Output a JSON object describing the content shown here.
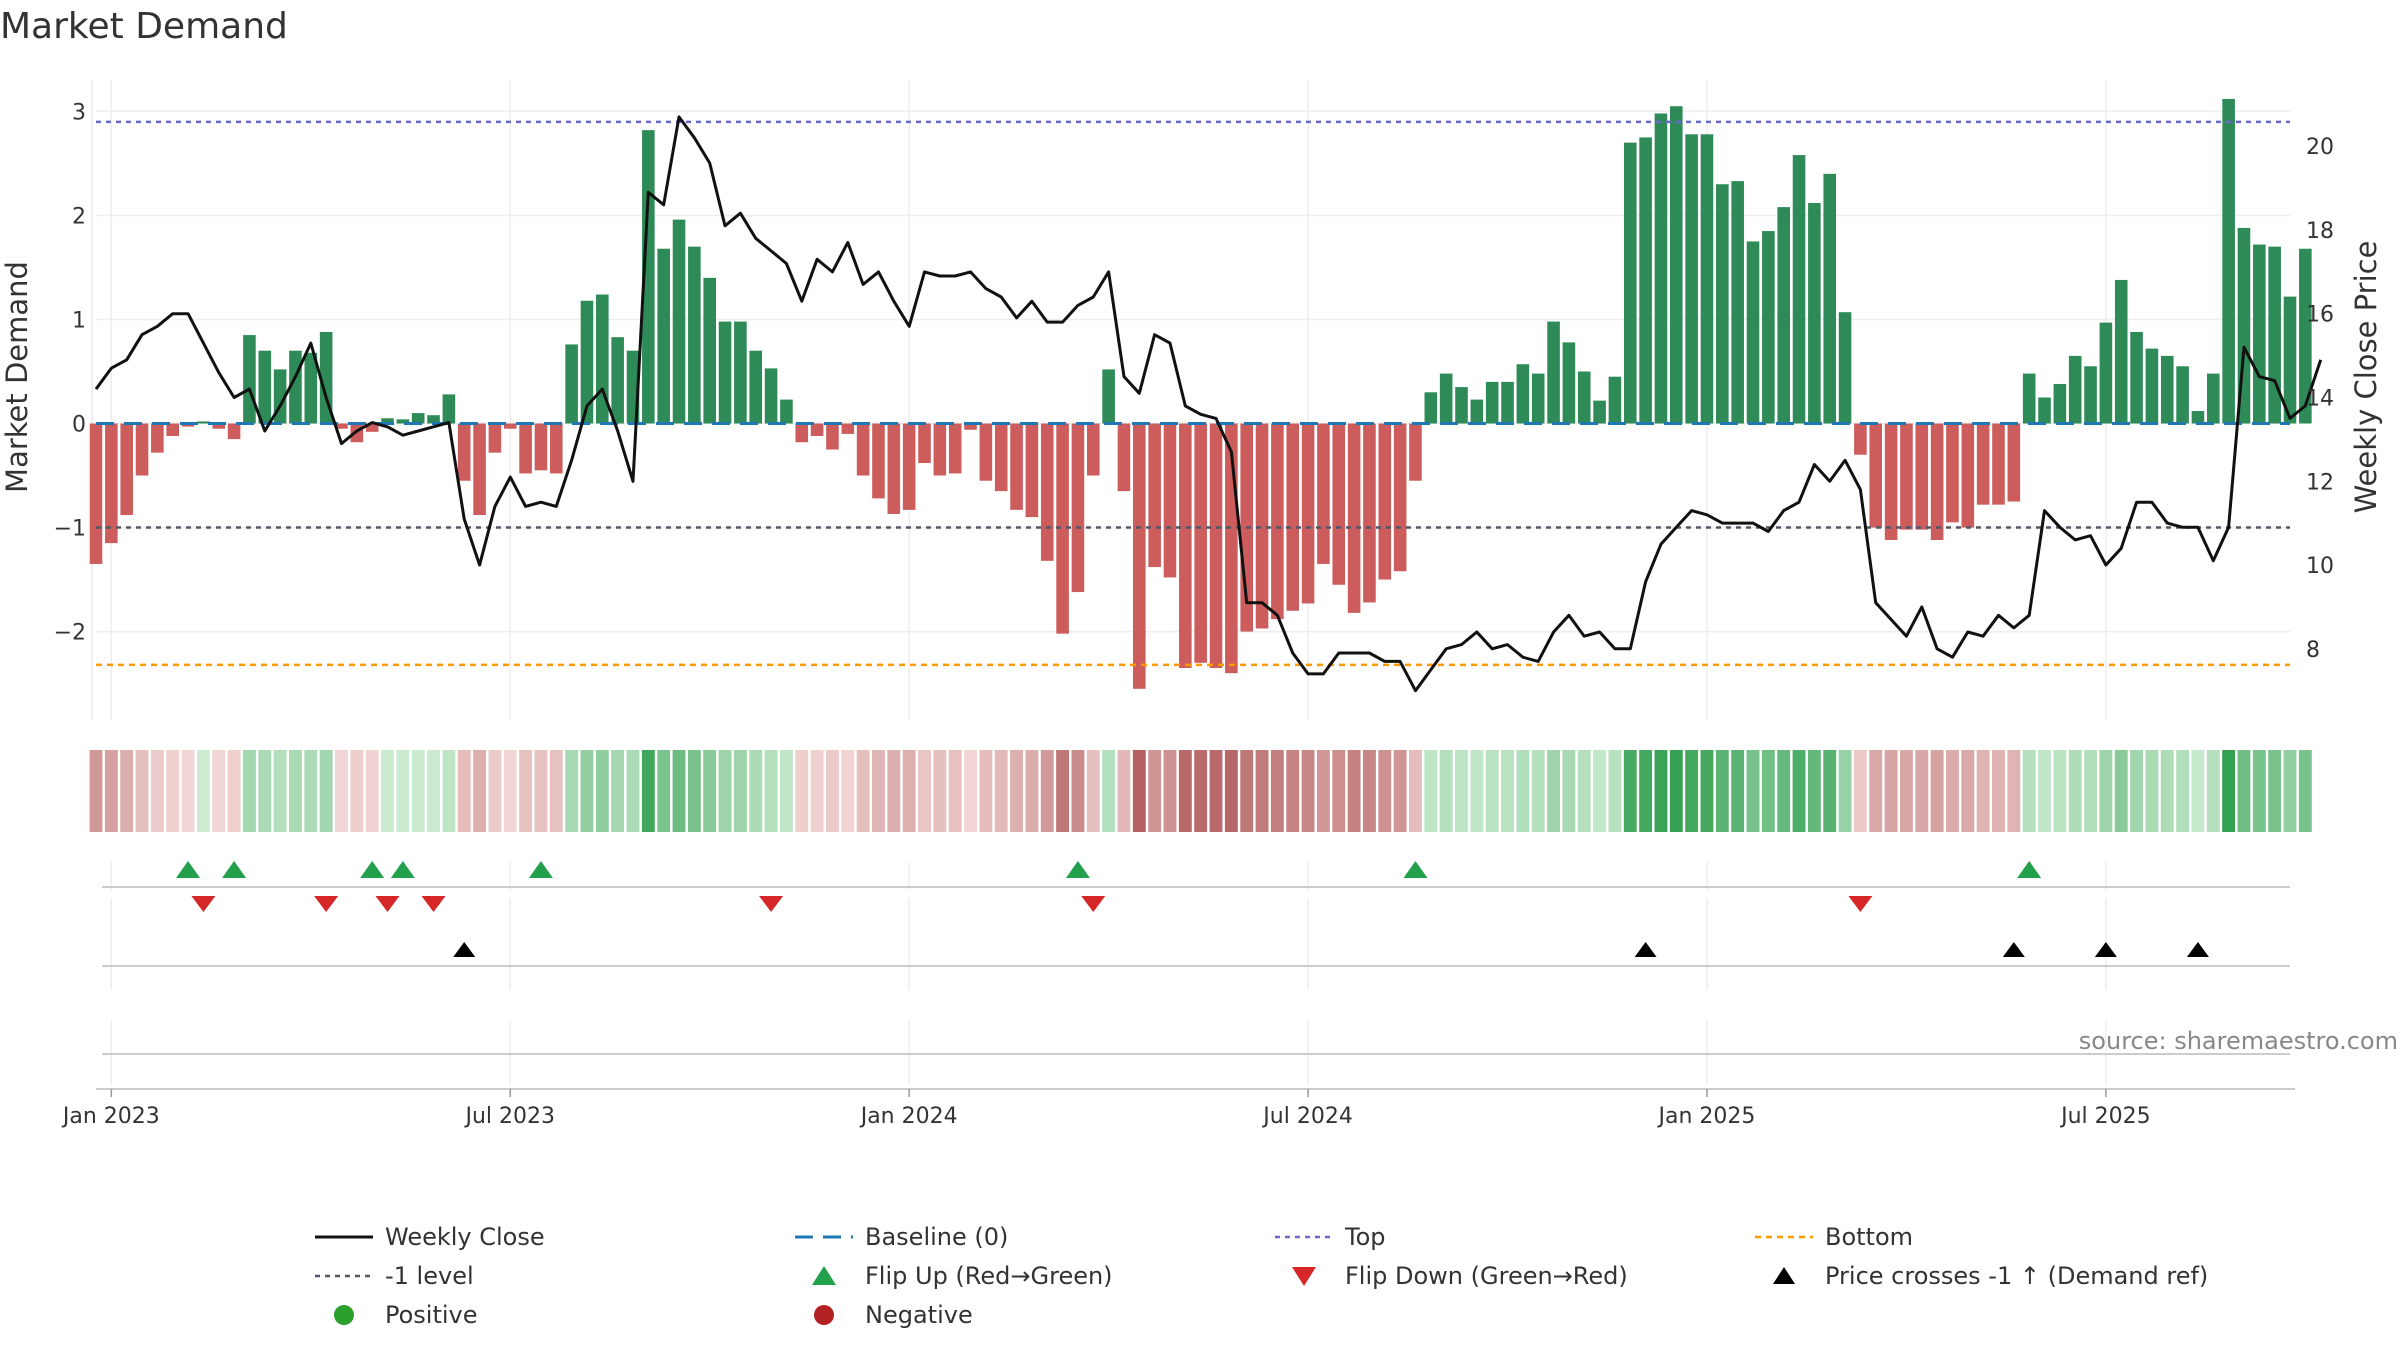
{
  "title": "Market Demand",
  "source": "source: sharemaestro.com",
  "colors": {
    "positive_bar": "#2e8b57",
    "negative_bar": "#cd5c5c",
    "close_line": "#111111",
    "baseline": "#1f77b4",
    "top": "#6a6ac8",
    "minus1": "#555566",
    "bottom": "#ff9900",
    "flip_up": "#22a04b",
    "flip_down": "#d62728",
    "cross": "#000000",
    "positive_dot": "#2ca02c",
    "negative_dot": "#b22222"
  },
  "chart_data": {
    "type": "bar",
    "title": "Market Demand",
    "xlabel": "",
    "ylabel": "Market Demand",
    "y2label": "Weekly Close Price",
    "ylim": [
      -2.85,
      3.35
    ],
    "y2lim": [
      6.3,
      21.7
    ],
    "yticks": [
      -2,
      -1,
      0,
      1,
      2,
      3
    ],
    "y2ticks": [
      8,
      10,
      12,
      14,
      16,
      18,
      20
    ],
    "ytick_labels": [
      "−2",
      "−1",
      "0",
      "1",
      "2",
      "3"
    ],
    "y2tick_labels": [
      "8",
      "10",
      "12",
      "14",
      "16",
      "18",
      "20"
    ],
    "x_start": "2022-12-26",
    "weeks": 144,
    "x_tick_labels": [
      "Jan 2023",
      "Jul 2023",
      "Jan 2024",
      "Jul 2024",
      "Jan 2025",
      "Jul 2025"
    ],
    "x_tick_weeks": [
      1,
      27,
      53,
      79,
      105,
      131
    ],
    "reference_lines": {
      "baseline": 0,
      "top": 2.9,
      "minus1": -1,
      "bottom": -2.32
    },
    "demand": [
      -1.35,
      -1.15,
      -0.88,
      -0.5,
      -0.28,
      -0.12,
      -0.03,
      0.02,
      -0.05,
      -0.15,
      0.85,
      0.7,
      0.52,
      0.7,
      0.68,
      0.88,
      -0.05,
      -0.18,
      -0.08,
      0.05,
      0.04,
      0.1,
      0.08,
      0.28,
      -0.55,
      -0.88,
      -0.28,
      -0.05,
      -0.48,
      -0.45,
      -0.48,
      0.76,
      1.18,
      1.24,
      0.83,
      0.7,
      2.82,
      1.68,
      1.96,
      1.7,
      1.4,
      0.98,
      0.98,
      0.7,
      0.53,
      0.23,
      -0.18,
      -0.12,
      -0.25,
      -0.1,
      -0.5,
      -0.72,
      -0.87,
      -0.83,
      -0.38,
      -0.5,
      -0.48,
      -0.06,
      -0.55,
      -0.65,
      -0.83,
      -0.9,
      -1.32,
      -2.02,
      -1.62,
      -0.5,
      0.52,
      -0.65,
      -2.55,
      -1.38,
      -1.48,
      -2.35,
      -2.3,
      -2.35,
      -2.4,
      -2.0,
      -1.97,
      -1.88,
      -1.8,
      -1.73,
      -1.35,
      -1.55,
      -1.82,
      -1.72,
      -1.5,
      -1.42,
      -0.55,
      0.3,
      0.48,
      0.35,
      0.23,
      0.4,
      0.4,
      0.57,
      0.48,
      0.98,
      0.78,
      0.5,
      0.22,
      0.45,
      2.7,
      2.75,
      2.98,
      3.05,
      2.78,
      2.78,
      2.3,
      2.33,
      1.75,
      1.85,
      2.08,
      2.58,
      2.12,
      2.4,
      1.07,
      -0.3,
      -1.0,
      -1.12,
      -1.02,
      -1.02,
      -1.12,
      -0.95,
      -1.0,
      -0.78,
      -0.78,
      -0.75,
      0.48,
      0.25,
      0.38,
      0.65,
      0.55,
      0.97,
      1.38,
      0.88,
      0.72,
      0.65,
      0.55,
      0.12,
      0.48,
      3.12,
      1.88,
      1.72,
      1.7,
      1.22,
      1.68
    ],
    "close": [
      14.2,
      14.7,
      14.9,
      15.5,
      15.7,
      16.0,
      16.0,
      15.3,
      14.6,
      14.0,
      14.2,
      13.2,
      13.8,
      14.5,
      15.3,
      14.0,
      12.9,
      13.2,
      13.4,
      13.3,
      13.1,
      13.2,
      13.3,
      13.4,
      11.1,
      10.0,
      11.4,
      12.1,
      11.4,
      11.5,
      11.4,
      12.5,
      13.8,
      14.2,
      13.2,
      12.0,
      18.9,
      18.6,
      20.7,
      20.2,
      19.6,
      18.1,
      18.4,
      17.8,
      17.5,
      17.2,
      16.3,
      17.3,
      17.0,
      17.7,
      16.7,
      17.0,
      16.3,
      15.7,
      17.0,
      16.9,
      16.9,
      17.0,
      16.6,
      16.4,
      15.9,
      16.3,
      15.8,
      15.8,
      16.2,
      16.4,
      17.0,
      14.5,
      14.1,
      15.5,
      15.3,
      13.8,
      13.6,
      13.5,
      12.7,
      9.1,
      9.1,
      8.8,
      7.9,
      7.4,
      7.4,
      7.9,
      7.9,
      7.9,
      7.7,
      7.7,
      7.0,
      7.5,
      8.0,
      8.1,
      8.4,
      8.0,
      8.1,
      7.8,
      7.7,
      8.4,
      8.8,
      8.3,
      8.4,
      8.0,
      8.0,
      9.6,
      10.5,
      10.9,
      11.3,
      11.2,
      11.0,
      11.0,
      11.0,
      10.8,
      11.3,
      11.5,
      12.4,
      12.0,
      12.5,
      11.8,
      9.1,
      8.7,
      8.3,
      9.0,
      8.0,
      7.8,
      8.4,
      8.3,
      8.8,
      8.5,
      8.8,
      11.3,
      10.9,
      10.6,
      10.7,
      10.0,
      10.4,
      11.5,
      11.5,
      11.0,
      10.9,
      10.9,
      10.1,
      10.9,
      15.2,
      14.5,
      14.4,
      13.5,
      13.8,
      14.9
    ],
    "flip_up_weeks": [
      6,
      9,
      18,
      20,
      29,
      64,
      86,
      126
    ],
    "flip_down_weeks": [
      7,
      15,
      19,
      22,
      44,
      65,
      115
    ],
    "cross_weeks": [
      24,
      101,
      125,
      131,
      137
    ]
  },
  "legend": [
    {
      "key": "close",
      "label": "Weekly Close"
    },
    {
      "key": "baseline",
      "label": "Baseline (0)"
    },
    {
      "key": "top",
      "label": "Top"
    },
    {
      "key": "bottom",
      "label": "Bottom"
    },
    {
      "key": "minus1",
      "label": "-1 level"
    },
    {
      "key": "flip_up",
      "label": "Flip Up (Red→Green)"
    },
    {
      "key": "flip_down",
      "label": "Flip Down (Green→Red)"
    },
    {
      "key": "cross",
      "label": "Price crosses -1 ↑ (Demand ref)"
    },
    {
      "key": "positive_dot",
      "label": "Positive"
    },
    {
      "key": "negative_dot",
      "label": "Negative"
    }
  ]
}
